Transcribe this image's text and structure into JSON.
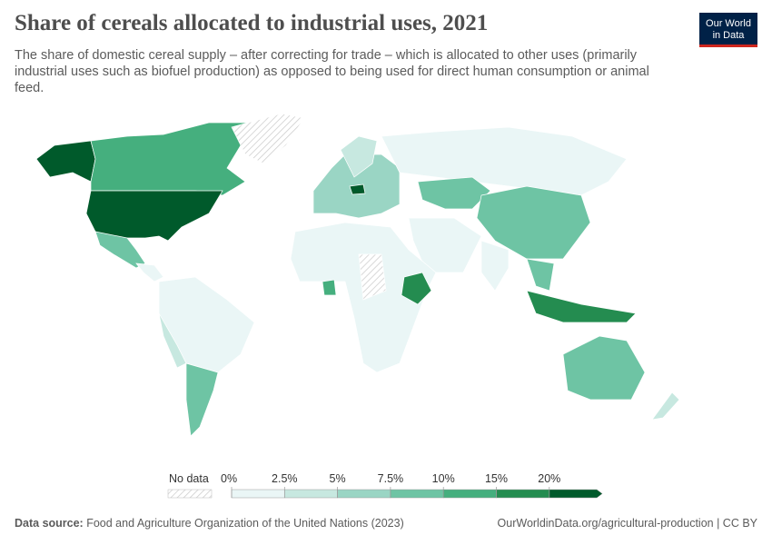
{
  "header": {
    "title": "Share of cereals allocated to industrial uses, 2021",
    "subtitle": "The share of domestic cereal supply – after correcting for trade – which is allocated to other uses (primarily industrial uses such as biofuel production) as opposed to being used for direct human consumption or animal feed.",
    "logo": [
      "Our World",
      "in Data"
    ]
  },
  "legend": {
    "no_data": "No data",
    "ticks": [
      {
        "value": 0,
        "label": "0%"
      },
      {
        "value": 2.5,
        "label": "2.5%"
      },
      {
        "value": 5,
        "label": "5%"
      },
      {
        "value": 7.5,
        "label": "7.5%"
      },
      {
        "value": 10,
        "label": "10%"
      },
      {
        "value": 15,
        "label": "15%"
      },
      {
        "value": 20,
        "label": "20%"
      }
    ],
    "colors": [
      "#eaf6f6",
      "#c7e8e0",
      "#9ad5c4",
      "#6ec4a4",
      "#45af7e",
      "#248c50",
      "#005a2b"
    ]
  },
  "footer": {
    "source_label": "Data source:",
    "source": "Food and Agriculture Organization of the United Nations (2023)",
    "url": "OurWorldinData.org/agricultural-production | CC BY"
  }
}
